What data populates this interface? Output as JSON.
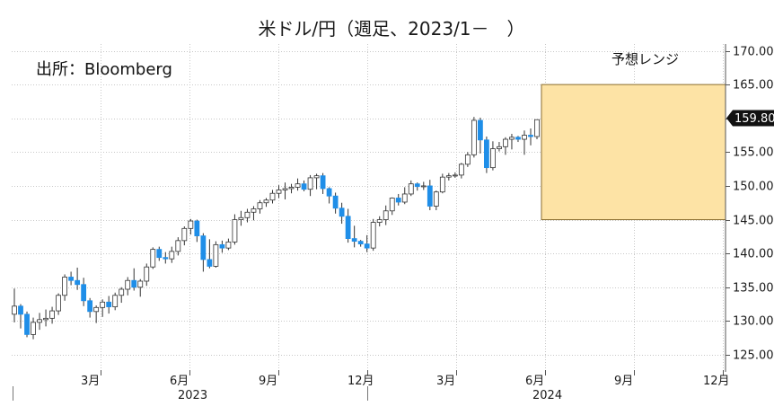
{
  "title": "米ドル/円（週足、2023/1－　）",
  "chart_data": {
    "type": "candlestick",
    "title": "米ドル/円（週足、2023/1－　）",
    "source": "出所：Bloomberg",
    "range_label": "予想レンジ",
    "forecast_range": {
      "low": 145.0,
      "high": 165.0
    },
    "last_value_label": "159.80",
    "ylim": [
      123.0,
      171.0
    ],
    "yticks": [
      "170.00",
      "165.00",
      "160.00",
      "155.00",
      "150.00",
      "145.00",
      "140.00",
      "135.00",
      "130.00",
      "125.00"
    ],
    "month_ticks": [
      "3月",
      "6月",
      "9月",
      "12月",
      "3月",
      "6月",
      "9月",
      "12月"
    ],
    "year_labels": [
      "2023",
      "2024"
    ],
    "colors": {
      "up": "#ffffff",
      "down": "#1f8ee8",
      "range_fill": "#fde3a5",
      "range_border": "#8a6d2f",
      "grid": "#c8c8c8"
    },
    "ohlc": [
      [
        131.0,
        134.8,
        129.8,
        132.2
      ],
      [
        132.2,
        132.5,
        128.9,
        131.0
      ],
      [
        131.0,
        131.4,
        127.6,
        128.0
      ],
      [
        128.0,
        130.5,
        127.3,
        129.8
      ],
      [
        129.8,
        131.2,
        128.7,
        130.2
      ],
      [
        130.2,
        131.7,
        129.2,
        130.4
      ],
      [
        130.4,
        132.1,
        129.6,
        131.5
      ],
      [
        131.5,
        134.1,
        130.9,
        133.8
      ],
      [
        133.8,
        136.9,
        133.0,
        136.5
      ],
      [
        136.5,
        137.3,
        135.3,
        136.0
      ],
      [
        136.0,
        137.9,
        134.6,
        135.4
      ],
      [
        135.4,
        136.4,
        132.2,
        133.0
      ],
      [
        133.0,
        133.4,
        130.5,
        131.4
      ],
      [
        131.4,
        132.3,
        129.7,
        132.0
      ],
      [
        132.0,
        133.2,
        130.6,
        132.8
      ],
      [
        132.8,
        133.7,
        131.1,
        132.1
      ],
      [
        132.1,
        134.2,
        131.6,
        133.8
      ],
      [
        133.8,
        135.0,
        132.7,
        134.7
      ],
      [
        134.7,
        136.5,
        133.8,
        136.0
      ],
      [
        136.0,
        137.8,
        134.5,
        135.0
      ],
      [
        135.0,
        136.2,
        133.6,
        135.9
      ],
      [
        135.9,
        138.5,
        135.2,
        138.0
      ],
      [
        138.0,
        140.9,
        137.7,
        140.6
      ],
      [
        140.6,
        141.0,
        138.9,
        139.4
      ],
      [
        139.4,
        140.2,
        138.5,
        139.2
      ],
      [
        139.2,
        141.0,
        138.6,
        140.3
      ],
      [
        140.3,
        142.4,
        139.7,
        141.9
      ],
      [
        141.9,
        144.0,
        141.2,
        143.7
      ],
      [
        143.7,
        145.1,
        142.8,
        144.8
      ],
      [
        144.8,
        145.0,
        141.7,
        142.6
      ],
      [
        142.6,
        143.0,
        137.3,
        139.1
      ],
      [
        139.1,
        142.1,
        137.8,
        138.1
      ],
      [
        138.1,
        141.8,
        137.9,
        141.3
      ],
      [
        141.3,
        141.9,
        140.1,
        140.8
      ],
      [
        140.8,
        142.2,
        140.5,
        141.7
      ],
      [
        141.7,
        145.8,
        141.3,
        145.0
      ],
      [
        145.0,
        146.3,
        144.1,
        145.3
      ],
      [
        145.3,
        146.6,
        144.6,
        146.1
      ],
      [
        146.1,
        147.0,
        144.9,
        146.6
      ],
      [
        146.6,
        147.9,
        145.9,
        147.5
      ],
      [
        147.5,
        148.2,
        146.9,
        147.9
      ],
      [
        147.9,
        149.4,
        147.4,
        148.9
      ],
      [
        148.9,
        150.1,
        148.2,
        149.4
      ],
      [
        149.4,
        150.5,
        148.0,
        149.6
      ],
      [
        149.6,
        150.3,
        148.9,
        149.8
      ],
      [
        149.8,
        151.1,
        149.3,
        150.3
      ],
      [
        150.3,
        150.8,
        149.2,
        149.5
      ],
      [
        149.5,
        151.6,
        148.5,
        151.2
      ],
      [
        151.2,
        151.8,
        149.5,
        151.5
      ],
      [
        151.5,
        151.9,
        148.8,
        149.6
      ],
      [
        149.6,
        149.8,
        147.4,
        148.5
      ],
      [
        148.5,
        149.0,
        145.9,
        146.7
      ],
      [
        146.7,
        147.5,
        144.4,
        145.5
      ],
      [
        145.5,
        146.6,
        141.6,
        142.2
      ],
      [
        142.2,
        144.1,
        140.9,
        141.8
      ],
      [
        141.8,
        142.0,
        141.0,
        141.4
      ],
      [
        141.4,
        142.7,
        140.2,
        140.8
      ],
      [
        140.8,
        145.1,
        140.4,
        144.6
      ],
      [
        144.6,
        145.5,
        144.0,
        145.0
      ],
      [
        145.0,
        147.1,
        144.2,
        146.3
      ],
      [
        146.3,
        148.3,
        145.7,
        148.2
      ],
      [
        148.2,
        148.8,
        147.1,
        147.6
      ],
      [
        147.6,
        149.8,
        147.3,
        148.8
      ],
      [
        148.8,
        150.8,
        148.5,
        150.3
      ],
      [
        150.3,
        150.5,
        149.3,
        149.9
      ],
      [
        149.9,
        150.6,
        149.4,
        150.0
      ],
      [
        150.0,
        150.9,
        146.4,
        147.0
      ],
      [
        147.0,
        149.3,
        146.4,
        149.1
      ],
      [
        149.1,
        151.8,
        148.9,
        151.3
      ],
      [
        151.3,
        151.9,
        150.8,
        151.5
      ],
      [
        151.5,
        152.0,
        151.2,
        151.6
      ],
      [
        151.6,
        153.4,
        151.1,
        153.2
      ],
      [
        153.2,
        155.0,
        152.8,
        154.6
      ],
      [
        154.6,
        160.2,
        154.2,
        159.7
      ],
      [
        159.7,
        160.1,
        154.8,
        156.8
      ],
      [
        156.8,
        157.3,
        151.9,
        152.7
      ],
      [
        152.7,
        156.6,
        152.3,
        155.5
      ],
      [
        155.5,
        156.5,
        155.1,
        155.8
      ],
      [
        155.8,
        157.2,
        154.6,
        156.9
      ],
      [
        156.9,
        157.7,
        155.4,
        157.2
      ],
      [
        157.2,
        157.4,
        156.5,
        156.9
      ],
      [
        156.9,
        158.2,
        154.6,
        157.5
      ],
      [
        157.5,
        158.5,
        156.0,
        157.3
      ],
      [
        157.3,
        159.8,
        156.9,
        159.8
      ]
    ]
  }
}
